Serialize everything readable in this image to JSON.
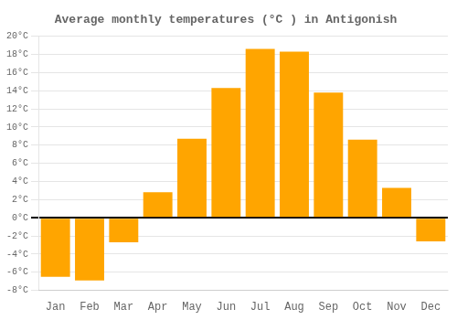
{
  "chart_data": {
    "type": "bar",
    "title": "Average monthly temperatures (°C ) in Antigonish",
    "categories": [
      "Jan",
      "Feb",
      "Mar",
      "Apr",
      "May",
      "Jun",
      "Jul",
      "Aug",
      "Sep",
      "Oct",
      "Nov",
      "Dec"
    ],
    "values": [
      -6.5,
      -6.9,
      -2.7,
      2.8,
      8.7,
      14.3,
      18.6,
      18.3,
      13.8,
      8.6,
      3.3,
      -2.6
    ],
    "color": "#FFA500",
    "ylim": [
      -8,
      20
    ],
    "yticks": [
      {
        "value": -8,
        "label": "-8°C"
      },
      {
        "value": -6,
        "label": "-6°C"
      },
      {
        "value": -4,
        "label": "-4°C"
      },
      {
        "value": -2,
        "label": "-2°C"
      },
      {
        "value": 0,
        "label": "0°C"
      },
      {
        "value": 2,
        "label": "2°C"
      },
      {
        "value": 4,
        "label": "4°C"
      },
      {
        "value": 6,
        "label": "6°C"
      },
      {
        "value": 8,
        "label": "8°C"
      },
      {
        "value": 10,
        "label": "10°C"
      },
      {
        "value": 12,
        "label": "12°C"
      },
      {
        "value": 14,
        "label": "14°C"
      },
      {
        "value": 16,
        "label": "16°C"
      },
      {
        "value": 18,
        "label": "18°C"
      },
      {
        "value": 20,
        "label": "20°C"
      }
    ],
    "grid": true
  }
}
